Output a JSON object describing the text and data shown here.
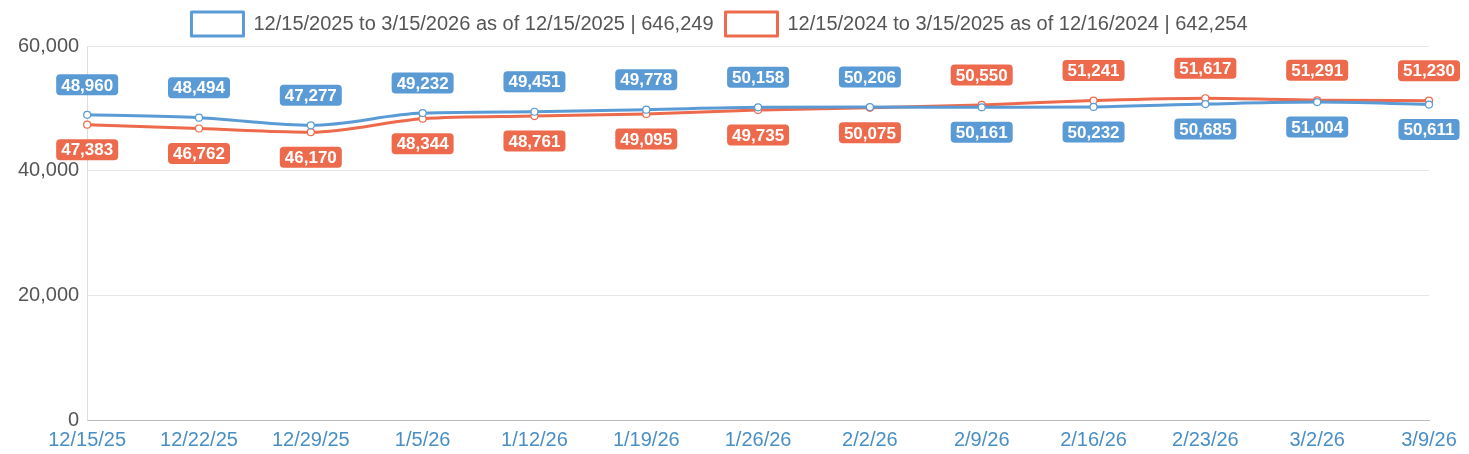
{
  "chart_data": {
    "type": "line",
    "categories": [
      "12/15/25",
      "12/22/25",
      "12/29/25",
      "1/5/26",
      "1/12/26",
      "1/19/26",
      "1/26/26",
      "2/2/26",
      "2/9/26",
      "2/16/26",
      "2/23/26",
      "3/2/26",
      "3/9/26"
    ],
    "series": [
      {
        "name": "12/15/2025 to 3/15/2026 as of 12/15/2025 | 646,249",
        "color": "#5b9bd5",
        "values": [
          48960,
          48494,
          47277,
          49232,
          49451,
          49778,
          50158,
          50206,
          50161,
          50232,
          50685,
          51004,
          50611
        ],
        "value_labels": [
          "48,960",
          "48,494",
          "47,277",
          "49,232",
          "49,451",
          "49,778",
          "50,158",
          "50,206",
          "50,161",
          "50,232",
          "50,685",
          "51,004",
          "50,611"
        ]
      },
      {
        "name": "12/15/2024 to 3/15/2025 as of 12/16/2024 | 642,254",
        "color": "#ed6a4d",
        "values": [
          47383,
          46762,
          46170,
          48344,
          48761,
          49095,
          49735,
          50075,
          50550,
          51241,
          51617,
          51291,
          51230
        ],
        "value_labels": [
          "47,383",
          "46,762",
          "46,170",
          "48,344",
          "48,761",
          "49,095",
          "49,735",
          "50,075",
          "50,550",
          "51,241",
          "51,617",
          "51,291",
          "51,230"
        ]
      }
    ],
    "ylim": [
      0,
      60000
    ],
    "yticks": [
      0,
      {
        "value": 20000,
        "label": "20,000"
      },
      {
        "value": 40000,
        "label": "40,000"
      },
      {
        "value": 60000,
        "label": "60,000"
      }
    ],
    "grid": "y",
    "legend": "top",
    "marker": "circle",
    "line_style": "solid"
  }
}
